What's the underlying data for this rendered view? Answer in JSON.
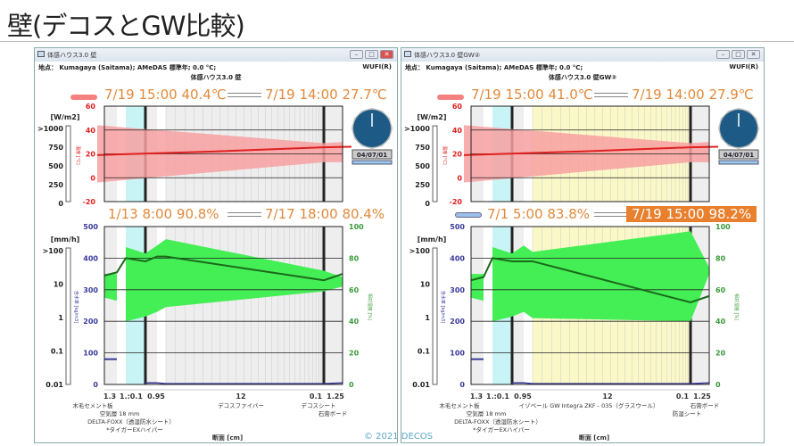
{
  "slide_title": "壁(デコスとGW比較)",
  "copyright": "© 2021 DECOS",
  "common": {
    "solar_unit": "[W/m2]",
    "solar_ticks": [
      ">1000",
      "750",
      "500",
      "250",
      "0"
    ],
    "rain_unit": "[mm/h]",
    "rain_ticks": [
      ">100",
      "10",
      "1",
      "0.1",
      "0.01"
    ],
    "temp_ticks": [
      "60",
      "40",
      "20",
      "0",
      "-20"
    ],
    "temp_axis": "温度 [°C]",
    "water_ticks": [
      "500",
      "400",
      "300",
      "200",
      "100",
      "0"
    ],
    "water_axis": "含水率 [kg/m3]",
    "rh_ticks": [
      "100",
      "80",
      "60",
      "40",
      "20",
      "0"
    ],
    "rh_axis": "相対湿度 [%]",
    "x_axis": "断面 [cm]",
    "colors": {
      "temp": "#e02020",
      "temp_band": "#f7a0a0",
      "rh": "#1a6a1a",
      "rh_band": "#44ee55",
      "water": "#3a3a9a",
      "accent": "#e08a3c",
      "highlight": "#e8802e"
    }
  },
  "panels": [
    {
      "window_title": "体感ハウス3.0  壁",
      "location": "地点： Kumagaya (Saitama); AMeDAS 標準年; 0.0 °C;",
      "wufi": "WUFI(R)",
      "subtitle": "体感ハウス3.0  壁",
      "temp_max": "7/19 15:00 40.4℃",
      "temp_min": "7/19 14:00 27.7℃",
      "rh_left": "1/13 8:00 90.8%",
      "rh_right": "7/17 18:00 80.4%",
      "rh_right_highlight": false,
      "date": "04/07/01",
      "thicknesses": [
        "1.3",
        "1.:0.1",
        "0.95",
        "12",
        "0.1",
        "1.25"
      ],
      "materials": [
        "木毛セメント板",
        "空気層 18 mm",
        "DELTA-FOXX（透湿防水シート）",
        "*タイガーEXハイパー",
        "デコスファイバー",
        "デコスシート",
        "石膏ボード"
      ],
      "insulation": "grey"
    },
    {
      "window_title": "体感ハウス3.0 壁GW②",
      "location": "地点： Kumagaya (Saitama); AMeDAS 標準年; 0.0 °C;",
      "wufi": "WUFI(R)",
      "subtitle": "体感ハウス3.0 壁GW②",
      "temp_max": "7/19 15:00 41.0℃",
      "temp_min": "7/19 14:00 27.9℃",
      "rh_left": "7/1 5:00 83.8%",
      "rh_right": "7/19 15:00 98.2%",
      "rh_right_highlight": true,
      "date": "04/07/01",
      "thicknesses": [
        "1.3",
        "1.:0.1",
        "0.95",
        "12",
        "0.1",
        "1.25"
      ],
      "materials": [
        "木毛セメント板",
        "空気層 18 mm",
        "DELTA-FOXX（透湿防水シート）",
        "*タイガーEXハイパー",
        "イゾベール GW Integra ZKF - 035（グラスウール）",
        "石膏ボード",
        "防湿シート"
      ],
      "insulation": "yellow"
    }
  ]
}
